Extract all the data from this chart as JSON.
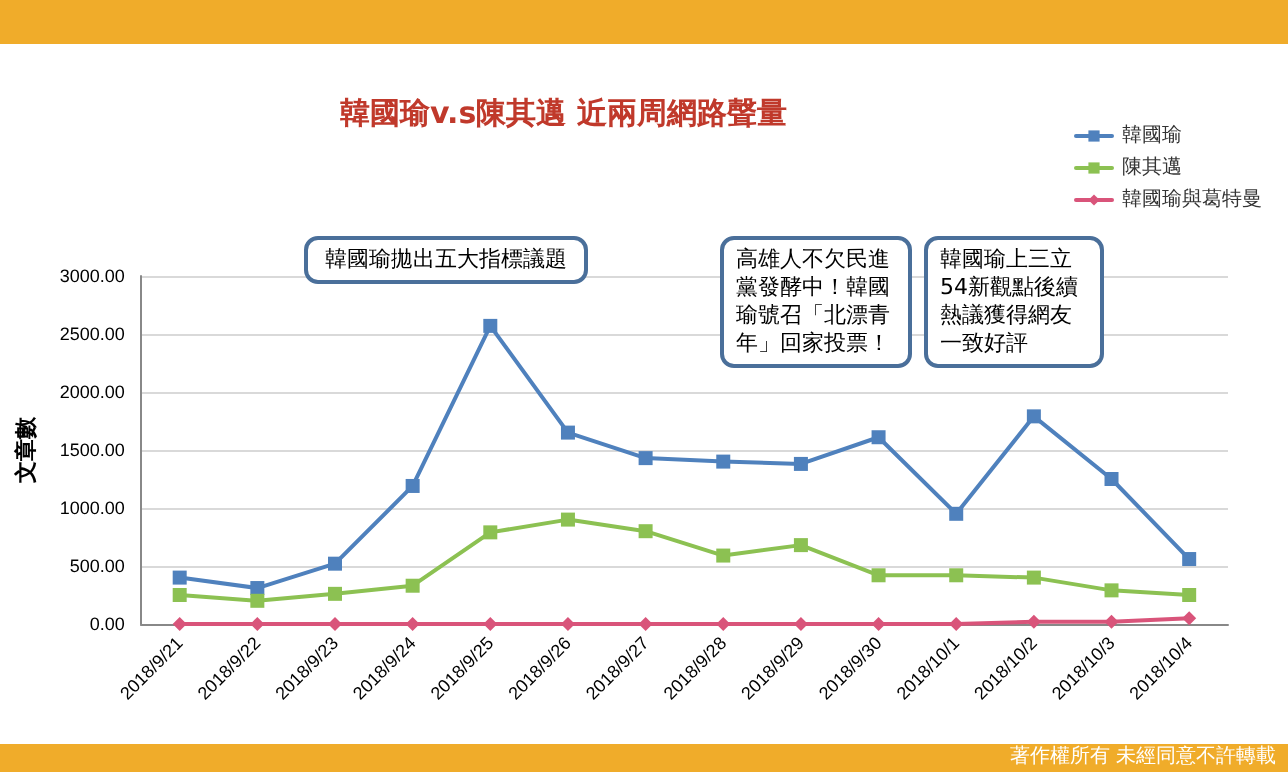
{
  "chart_data": {
    "type": "line",
    "title": "韓國瑜v.s陳其邁 近兩周網路聲量",
    "ylabel": "文章數",
    "categories": [
      "2018/9/21",
      "2018/9/22",
      "2018/9/23",
      "2018/9/24",
      "2018/9/25",
      "2018/9/26",
      "2018/9/27",
      "2018/9/28",
      "2018/9/29",
      "2018/9/30",
      "2018/10/1",
      "2018/10/2",
      "2018/10/3",
      "2018/10/4"
    ],
    "series": [
      {
        "name": "韓國瑜",
        "color": "#4f81bd",
        "values": [
          400,
          310,
          520,
          1190,
          2570,
          1650,
          1430,
          1400,
          1380,
          1610,
          950,
          1790,
          1250,
          560
        ]
      },
      {
        "name": "陳其邁",
        "color": "#8cc152",
        "values": [
          250,
          200,
          260,
          330,
          790,
          900,
          800,
          590,
          680,
          420,
          420,
          400,
          290,
          250
        ]
      },
      {
        "name": "韓國瑜與葛特曼",
        "color": "#d9547a",
        "marker": "diamond",
        "values": [
          0,
          0,
          0,
          0,
          0,
          0,
          0,
          0,
          0,
          0,
          0,
          20,
          20,
          50
        ]
      }
    ],
    "ylim": [
      0,
      3000
    ],
    "yticks": [
      {
        "value": 0,
        "label": "0.00"
      },
      {
        "value": 500,
        "label": "500.00"
      },
      {
        "value": 1000,
        "label": "1000.00"
      },
      {
        "value": 1500,
        "label": "1500.00"
      },
      {
        "value": 2000,
        "label": "2000.00"
      },
      {
        "value": 2500,
        "label": "2500.00"
      },
      {
        "value": 3000,
        "label": "3000.00"
      }
    ],
    "grid": "y",
    "legend": "top right",
    "marker": "square",
    "annotations": [
      "韓國瑜拋出五大指標議題",
      "高雄人不欠民進黨發酵中！韓國瑜號召「北漂青年」回家投票！",
      "韓國瑜上三立54新觀點後續熱議獲得網友一致好評",
      "著作權所有 未經同意不許轉載"
    ]
  }
}
